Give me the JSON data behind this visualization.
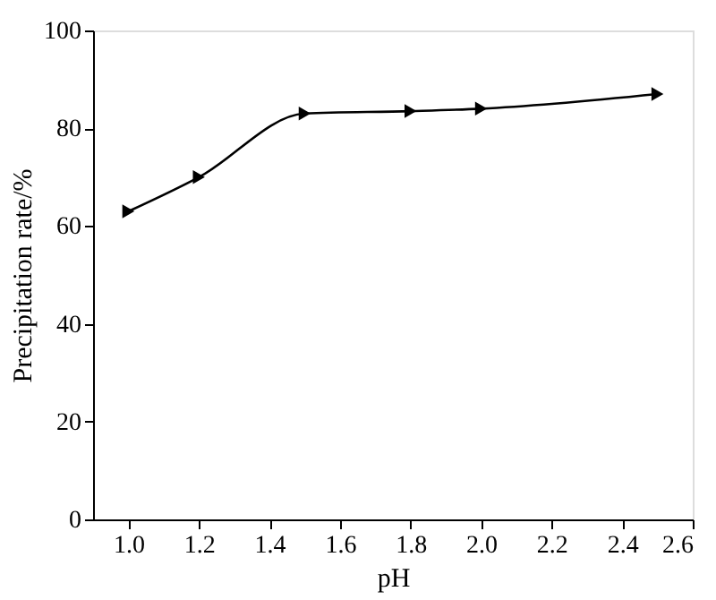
{
  "chart_data": {
    "type": "line",
    "xlabel": "pH",
    "ylabel": "Precipitation rate/%",
    "x": [
      1.0,
      1.2,
      1.5,
      1.8,
      2.0,
      2.5
    ],
    "series": [
      {
        "color": "#000000",
        "values": [
          63,
          70,
          83,
          83.5,
          84,
          87
        ]
      }
    ],
    "xlim": [
      0.9,
      2.6
    ],
    "xticks": [
      {
        "value": 1.0,
        "label": "1.0"
      },
      1.2,
      1.4,
      1.6,
      1.8,
      {
        "value": 2.0,
        "label": "2.0"
      },
      2.2,
      2.4,
      2.6
    ],
    "ylim": [
      0,
      100
    ],
    "yticks": [
      0,
      20,
      40,
      60,
      80,
      100
    ],
    "marker": "triangle",
    "line_style": "solid"
  }
}
